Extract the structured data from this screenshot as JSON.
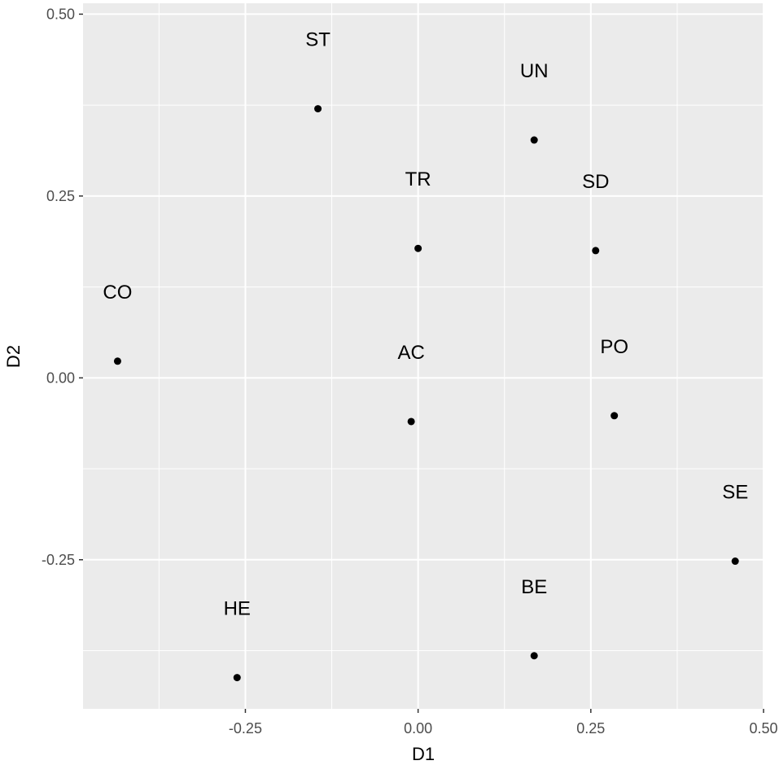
{
  "chart_data": {
    "type": "scatter",
    "xlabel": "D1",
    "ylabel": "D2",
    "xlim": [
      -0.485,
      0.5
    ],
    "ylim": [
      -0.455,
      0.515
    ],
    "x_ticks": [
      {
        "value": -0.25,
        "label": "-0.25"
      },
      {
        "value": 0.0,
        "label": "0.00"
      },
      {
        "value": 0.25,
        "label": "0.25"
      },
      {
        "value": 0.5,
        "label": "0.50"
      }
    ],
    "y_ticks": [
      {
        "value": -0.25,
        "label": "-0.25"
      },
      {
        "value": 0.0,
        "label": "0.00"
      },
      {
        "value": 0.25,
        "label": "0.25"
      },
      {
        "value": 0.5,
        "label": "0.50"
      }
    ],
    "x_minor": [
      -0.375,
      -0.125,
      0.125,
      0.375
    ],
    "y_minor": [
      -0.375,
      -0.125,
      0.125,
      0.375
    ],
    "grid": true,
    "points": [
      {
        "label": "ST",
        "x": -0.145,
        "y": 0.37
      },
      {
        "label": "UN",
        "x": 0.168,
        "y": 0.327
      },
      {
        "label": "TR",
        "x": 0.0,
        "y": 0.178
      },
      {
        "label": "SD",
        "x": 0.257,
        "y": 0.175
      },
      {
        "label": "CO",
        "x": -0.435,
        "y": 0.023
      },
      {
        "label": "AC",
        "x": -0.01,
        "y": -0.06
      },
      {
        "label": "PO",
        "x": 0.284,
        "y": -0.052
      },
      {
        "label": "SE",
        "x": 0.459,
        "y": -0.252
      },
      {
        "label": "BE",
        "x": 0.168,
        "y": -0.382
      },
      {
        "label": "HE",
        "x": -0.262,
        "y": -0.412
      }
    ],
    "colors": {
      "panel": "#ebebeb",
      "grid": "#ffffff",
      "point": "#000000",
      "tick_text": "#4d4d4d",
      "tick_mark": "#333333"
    }
  }
}
